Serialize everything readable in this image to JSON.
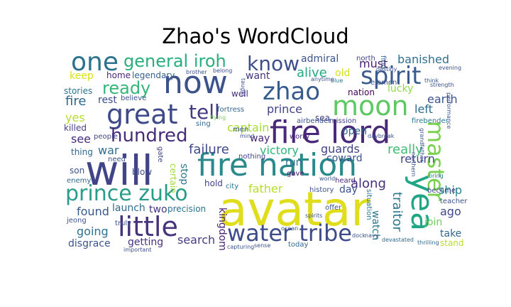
{
  "title": "Zhao's WordCloud",
  "words": [
    {
      "text": "avatar",
      "color": "#e0dd1c"
    },
    {
      "text": "fire lord",
      "color": "#482979"
    },
    {
      "text": "fire nation",
      "color": "#2a8a8b"
    },
    {
      "text": "will",
      "color": "#414487"
    },
    {
      "text": "now",
      "color": "#3b528b"
    },
    {
      "text": "water tribe",
      "color": "#3e4c8a"
    },
    {
      "text": "moon",
      "color": "#5ec962"
    },
    {
      "text": "prince zuko",
      "color": "#2a9d8a"
    },
    {
      "text": "great",
      "color": "#3f4b89"
    },
    {
      "text": "little",
      "color": "#46337e"
    },
    {
      "text": "yea",
      "color": "#21a685"
    },
    {
      "text": "spirit",
      "color": "#3b5b8c"
    },
    {
      "text": "zhao",
      "color": "#365c8d"
    },
    {
      "text": "one",
      "color": "#2c728e"
    },
    {
      "text": "master",
      "color": "#7ad151"
    },
    {
      "text": "hundred",
      "color": "#472c7a"
    },
    {
      "text": "general iroh",
      "color": "#29af7f"
    },
    {
      "text": "know",
      "color": "#3d4e8a"
    },
    {
      "text": "ready",
      "color": "#34b679"
    },
    {
      "text": "tell",
      "color": "#443a83"
    },
    {
      "text": "fire",
      "color": "#31688e"
    },
    {
      "text": "banished",
      "color": "#2e6f8e"
    },
    {
      "text": "must",
      "color": "#482071"
    },
    {
      "text": "alive",
      "color": "#23a983"
    },
    {
      "text": "admiral",
      "color": "#3b538b"
    },
    {
      "text": "old",
      "color": "#d2e21b"
    },
    {
      "text": "prince",
      "color": "#414287"
    },
    {
      "text": "captain",
      "color": "#a8db34"
    },
    {
      "text": "failure",
      "color": "#3e4989"
    },
    {
      "text": "victory",
      "color": "#31b57b"
    },
    {
      "text": "guards",
      "color": "#414487"
    },
    {
      "text": "really",
      "color": "#3ebc74"
    },
    {
      "text": "father",
      "color": "#b5de2b"
    },
    {
      "text": "along",
      "color": "#472f7d"
    },
    {
      "text": "traitor",
      "color": "#2a778e"
    },
    {
      "text": "earth",
      "color": "#3b528b"
    },
    {
      "text": "left",
      "color": "#2f6c8e"
    },
    {
      "text": "return",
      "color": "#404588"
    },
    {
      "text": "ship",
      "color": "#26828e"
    },
    {
      "text": "ago",
      "color": "#3e4a89"
    },
    {
      "text": "join",
      "color": "#6ece58"
    },
    {
      "text": "take",
      "color": "#31678e"
    },
    {
      "text": "stand",
      "color": "#b8de29"
    },
    {
      "text": "war",
      "color": "#2d708e"
    },
    {
      "text": "see",
      "color": "#472a7a"
    },
    {
      "text": "rest",
      "color": "#3c4f8a"
    },
    {
      "text": "yes",
      "color": "#b5de2b"
    },
    {
      "text": "found",
      "color": "#38598c"
    },
    {
      "text": "going",
      "color": "#2d718e"
    },
    {
      "text": "disgrace",
      "color": "#3a548c"
    },
    {
      "text": "getting",
      "color": "#46327e"
    },
    {
      "text": "search",
      "color": "#433d84"
    },
    {
      "text": "launch",
      "color": "#2f6b8e"
    },
    {
      "text": "two",
      "color": "#453781"
    },
    {
      "text": "precision",
      "color": "#2c728e"
    },
    {
      "text": "way",
      "color": "#482475"
    },
    {
      "text": "run",
      "color": "#2e6d8e"
    },
    {
      "text": "kingdom",
      "color": "#482173"
    },
    {
      "text": "watch",
      "color": "#2a788e"
    },
    {
      "text": "day",
      "color": "#3b528b"
    },
    {
      "text": "open",
      "color": "#31688e"
    },
    {
      "text": "coward",
      "color": "#3b528b"
    },
    {
      "text": "lucky",
      "color": "#90d743"
    },
    {
      "text": "nation",
      "color": "#440154"
    },
    {
      "text": "sea",
      "color": "#414487"
    },
    {
      "text": "well",
      "color": "#472d7b"
    },
    {
      "text": "want",
      "color": "#46337e"
    },
    {
      "text": "keep",
      "color": "#d8e219"
    },
    {
      "text": "home",
      "color": "#482576"
    },
    {
      "text": "legendary",
      "color": "#34618d"
    },
    {
      "text": "stories",
      "color": "#2c728e"
    },
    {
      "text": "killed",
      "color": "#433e85"
    },
    {
      "text": "thing",
      "color": "#31688e"
    },
    {
      "text": "son",
      "color": "#3b528b"
    },
    {
      "text": "blow",
      "color": "#3e4989"
    },
    {
      "text": "stop",
      "color": "#2a768e"
    },
    {
      "text": "certain",
      "color": "#a2da37"
    },
    {
      "text": "hold",
      "color": "#414487"
    },
    {
      "text": "city",
      "color": "#2c728e"
    },
    {
      "text": "gave",
      "color": "#471164"
    },
    {
      "text": "history",
      "color": "#3b528b"
    },
    {
      "text": "heard",
      "color": "#482878"
    },
    {
      "text": "situation",
      "color": "#2a788e"
    },
    {
      "text": "become",
      "color": "#3e4989"
    },
    {
      "text": "teacher",
      "color": "#3b528b"
    },
    {
      "text": "mission",
      "color": "#414487"
    },
    {
      "text": "airbender",
      "color": "#3b528b"
    },
    {
      "text": "fortress",
      "color": "#31688e"
    },
    {
      "text": "firebender",
      "color": "#2a788e"
    },
    {
      "text": "element",
      "color": "#3b528b"
    },
    {
      "text": "north",
      "color": "#414487"
    },
    {
      "text": "people",
      "color": "#414487"
    },
    {
      "text": "believe",
      "color": "#3b528b"
    },
    {
      "text": "sing",
      "color": "#31688e"
    },
    {
      "text": "men",
      "color": "#3b528b"
    },
    {
      "text": "worry",
      "color": "#482173"
    },
    {
      "text": "nothing",
      "color": "#414487"
    },
    {
      "text": "need",
      "color": "#3b528b"
    },
    {
      "text": "enemy",
      "color": "#31688e"
    },
    {
      "text": "jeong",
      "color": "#3b528b"
    },
    {
      "text": "truly",
      "color": "#3b528b"
    },
    {
      "text": "today",
      "color": "#31688e"
    },
    {
      "text": "gate",
      "color": "#414487"
    },
    {
      "text": "ocean",
      "color": "#3b528b"
    },
    {
      "text": "offer",
      "color": "#3b528b"
    },
    {
      "text": "daybreak",
      "color": "#3b528b"
    },
    {
      "text": "blue",
      "color": "#2a788e"
    },
    {
      "text": "think",
      "color": "#3b528b"
    },
    {
      "text": "find",
      "color": "#31688e"
    },
    {
      "text": "mind",
      "color": "#3b528b"
    },
    {
      "text": "taught",
      "color": "#3b528b"
    },
    {
      "text": "devastated",
      "color": "#31688e"
    },
    {
      "text": "northern",
      "color": "#3b528b"
    },
    {
      "text": "destiny",
      "color": "#3b528b"
    },
    {
      "text": "bring",
      "color": "#2a788e"
    },
    {
      "text": "world",
      "color": "#3b528b"
    },
    {
      "text": "capturing",
      "color": "#3b528b"
    },
    {
      "text": "thrilling",
      "color": "#31688e"
    },
    {
      "text": "important",
      "color": "#3b528b"
    },
    {
      "text": "sense",
      "color": "#3b528b"
    },
    {
      "text": "flying",
      "color": "#7ad151"
    },
    {
      "text": "dock",
      "color": "#3b528b"
    },
    {
      "text": "navy",
      "color": "#3b528b"
    },
    {
      "text": "spirits",
      "color": "#3b528b"
    },
    {
      "text": "brother",
      "color": "#3b528b"
    },
    {
      "text": "anytime",
      "color": "#3b528b"
    },
    {
      "text": "evening",
      "color": "#3b528b"
    },
    {
      "text": "strength",
      "color": "#3b528b"
    },
    {
      "text": "belong",
      "color": "#3b528b"
    },
    {
      "text": "grandfather",
      "color": "#3b528b"
    },
    {
      "text": "performance",
      "color": "#3b528b"
    }
  ]
}
